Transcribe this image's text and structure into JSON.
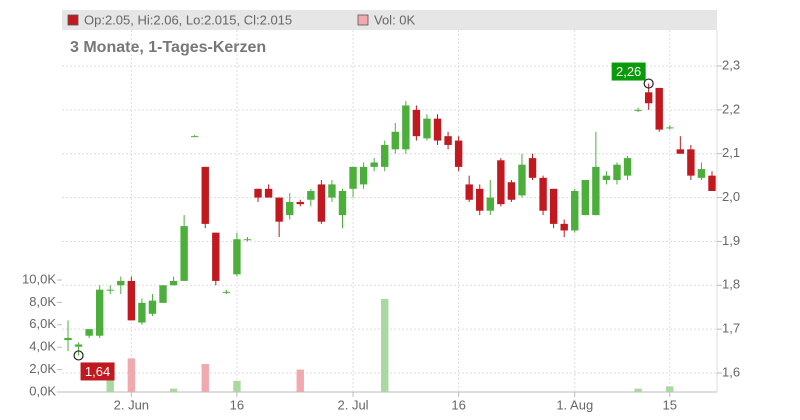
{
  "chart_data": {
    "type": "candlestick",
    "ohlc_legend": "Op:2.05, Hi:2.06, Lo:2.015, Cl:2.015",
    "volume_legend": "Vol: 0K",
    "subtitle": "3 Monate, 1-Tages-Kerzen",
    "up_color": "#4caf3c",
    "down_color": "#c1191f",
    "volume_up_color": "#a9d9a1",
    "volume_down_color": "#f1a9af",
    "grid": true,
    "categories": [
      null,
      null,
      null,
      null,
      null,
      null,
      "2. Jun",
      null,
      null,
      null,
      null,
      null,
      null,
      null,
      null,
      null,
      "16",
      null,
      null,
      null,
      null,
      null,
      null,
      null,
      null,
      null,
      null,
      "2. Jul",
      null,
      null,
      null,
      null,
      null,
      null,
      null,
      null,
      null,
      "16",
      null,
      null,
      null,
      null,
      null,
      null,
      null,
      null,
      null,
      null,
      "1. Aug",
      null,
      null,
      null,
      null,
      null,
      null,
      null,
      null,
      "15",
      null,
      null,
      null,
      null
    ],
    "open": [
      1.675,
      1.66,
      1.685,
      1.685,
      1.79,
      1.8,
      1.81,
      1.715,
      1.735,
      1.76,
      1.8,
      1.81,
      2.14,
      2.07,
      1.92,
      1.785,
      1.825,
      1.905,
      2.02,
      2.02,
      2.0,
      1.96,
      1.99,
      1.995,
      2.03,
      2.0,
      1.96,
      2.02,
      2.03,
      2.07,
      2.07,
      2.11,
      2.11,
      2.2,
      2.135,
      2.18,
      2.14,
      2.13,
      2.03,
      2.02,
      1.97,
      2.085,
      2.035,
      2.005,
      2.09,
      2.045,
      2.02,
      1.94,
      1.925,
      1.96,
      1.96,
      2.04,
      2.04,
      2.05,
      2.2,
      2.24,
      2.25,
      2.16,
      2.11,
      2.11,
      2.045,
      2.05
    ],
    "high": [
      1.72,
      1.67,
      1.7,
      1.8,
      1.8,
      1.82,
      1.82,
      1.77,
      1.78,
      1.8,
      1.82,
      1.96,
      2.143,
      2.07,
      1.92,
      1.79,
      1.92,
      1.91,
      2.02,
      2.03,
      2.0,
      2.01,
      1.995,
      2.02,
      2.04,
      2.04,
      2.02,
      2.07,
      2.08,
      2.09,
      2.13,
      2.17,
      2.22,
      2.21,
      2.19,
      2.19,
      2.15,
      2.14,
      2.05,
      2.03,
      2.04,
      2.09,
      2.04,
      2.1,
      2.1,
      2.05,
      2.02,
      1.95,
      2.02,
      2.04,
      2.15,
      2.06,
      2.08,
      2.095,
      2.205,
      2.26,
      2.25,
      2.165,
      2.14,
      2.12,
      2.08,
      2.06
    ],
    "low": [
      1.65,
      1.64,
      1.68,
      1.68,
      1.78,
      1.78,
      1.72,
      1.71,
      1.73,
      1.76,
      1.8,
      1.81,
      2.138,
      1.93,
      1.8,
      1.78,
      1.82,
      1.9,
      1.99,
      2.0,
      1.91,
      1.95,
      1.98,
      1.98,
      1.94,
      1.99,
      1.93,
      2.0,
      2.02,
      2.06,
      2.06,
      2.1,
      2.1,
      2.13,
      2.13,
      2.12,
      2.11,
      2.06,
      1.99,
      1.96,
      1.96,
      1.98,
      1.99,
      2.0,
      2.04,
      1.96,
      1.93,
      1.91,
      1.92,
      1.96,
      1.96,
      2.03,
      2.03,
      2.04,
      2.195,
      2.2,
      2.15,
      2.155,
      2.1,
      2.04,
      2.04,
      2.015
    ],
    "close": [
      1.68,
      1.665,
      1.7,
      1.79,
      1.79,
      1.81,
      1.72,
      1.76,
      1.765,
      1.8,
      1.81,
      1.935,
      2.14,
      1.94,
      1.81,
      1.785,
      1.905,
      1.905,
      2.0,
      2.0,
      1.945,
      1.99,
      1.985,
      2.015,
      1.945,
      2.03,
      2.015,
      2.07,
      2.07,
      2.08,
      2.12,
      2.15,
      2.21,
      2.14,
      2.18,
      2.13,
      2.12,
      2.07,
      1.995,
      1.97,
      2.0,
      1.985,
      1.995,
      2.075,
      2.045,
      1.97,
      1.94,
      1.925,
      2.015,
      2.04,
      2.07,
      2.05,
      2.075,
      2.09,
      2.2,
      2.215,
      2.155,
      2.16,
      2.1,
      2.05,
      2.065,
      2.015
    ],
    "volume": [
      0,
      0,
      0,
      0,
      1.5,
      0,
      3.0,
      0,
      0,
      0,
      0.3,
      0,
      0,
      2.5,
      0,
      0,
      1.0,
      0,
      0,
      0,
      0,
      0,
      2.0,
      0,
      0,
      0,
      0,
      0,
      0,
      0,
      8.3,
      0,
      0,
      0,
      0,
      0,
      0,
      0,
      0,
      0,
      0,
      0,
      0,
      0,
      0,
      0,
      0,
      0,
      0,
      0,
      0,
      0,
      0,
      0,
      0.3,
      0,
      0,
      0.5,
      0,
      0,
      0,
      0
    ],
    "ylim": [
      1.6,
      2.3
    ],
    "yticks": [
      {
        "value": 1.6,
        "label": "1,6"
      },
      {
        "value": 1.7,
        "label": "1,7"
      },
      {
        "value": 1.8,
        "label": "1,8"
      },
      {
        "value": 1.9,
        "label": "1,9"
      },
      {
        "value": 2.0,
        "label": "2,0"
      },
      {
        "value": 2.1,
        "label": "2,1"
      },
      {
        "value": 2.2,
        "label": "2,2"
      },
      {
        "value": 2.3,
        "label": "2,3"
      }
    ],
    "y2lim": [
      0,
      10
    ],
    "y2ticks": [
      {
        "value": 0,
        "label": "0,0K"
      },
      {
        "value": 2,
        "label": "2,0K"
      },
      {
        "value": 4,
        "label": "4,0K"
      },
      {
        "value": 6,
        "label": "6,0K"
      },
      {
        "value": 8,
        "label": "8,0K"
      },
      {
        "value": 10,
        "label": "10,0K"
      }
    ],
    "annotations": [
      {
        "index": 55,
        "value": 2.26,
        "label": "2,26",
        "color": "#0a9a0a"
      },
      {
        "index": 1,
        "value": 1.64,
        "label": "1,64",
        "color": "#c1191f"
      }
    ]
  }
}
